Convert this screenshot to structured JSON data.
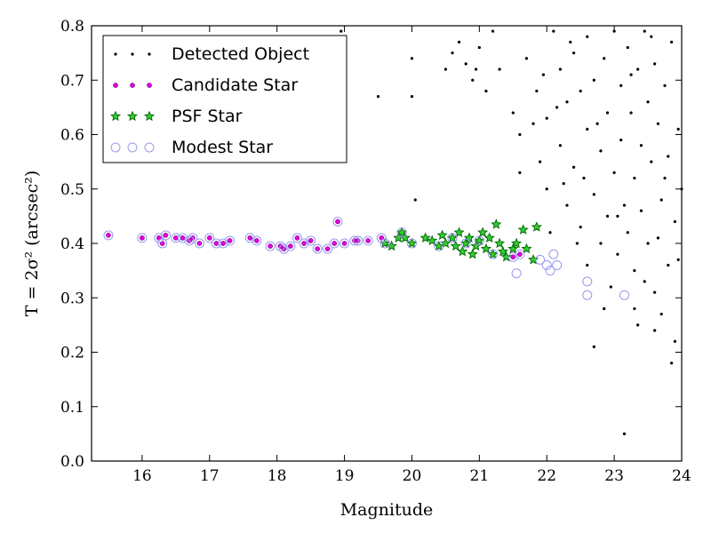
{
  "chart_data": {
    "type": "scatter",
    "xlabel": "Magnitude",
    "ylabel": "T = 2σ² (arcsec²)",
    "xlim": [
      15.25,
      24
    ],
    "ylim": [
      0,
      0.8
    ],
    "xticks": [
      16,
      17,
      18,
      19,
      20,
      21,
      22,
      23,
      24
    ],
    "yticks": [
      0.0,
      0.1,
      0.2,
      0.3,
      0.4,
      0.5,
      0.6,
      0.7,
      0.8
    ],
    "xtick_labels": [
      "16",
      "17",
      "18",
      "19",
      "20",
      "21",
      "22",
      "23",
      "24"
    ],
    "ytick_labels": [
      "0.0",
      "0.1",
      "0.2",
      "0.3",
      "0.4",
      "0.5",
      "0.6",
      "0.7",
      "0.8"
    ],
    "grid": false,
    "legend_position": "top-left",
    "series": [
      {
        "name": "Detected Object",
        "marker": "dot",
        "color": "#000000",
        "points": [
          [
            19.5,
            0.67
          ],
          [
            20.0,
            0.74
          ],
          [
            20.0,
            0.67
          ],
          [
            20.5,
            0.72
          ],
          [
            20.6,
            0.75
          ],
          [
            20.7,
            0.77
          ],
          [
            20.8,
            0.73
          ],
          [
            20.9,
            0.7
          ],
          [
            20.95,
            0.72
          ],
          [
            21.0,
            0.76
          ],
          [
            21.1,
            0.68
          ],
          [
            21.2,
            0.79
          ],
          [
            21.3,
            0.72
          ],
          [
            21.5,
            0.64
          ],
          [
            21.6,
            0.6
          ],
          [
            21.8,
            0.62
          ],
          [
            21.9,
            0.55
          ],
          [
            22.0,
            0.63
          ],
          [
            22.0,
            0.5
          ],
          [
            22.1,
            0.79
          ],
          [
            22.2,
            0.72
          ],
          [
            22.2,
            0.58
          ],
          [
            22.3,
            0.66
          ],
          [
            22.3,
            0.47
          ],
          [
            22.4,
            0.75
          ],
          [
            22.4,
            0.54
          ],
          [
            22.5,
            0.68
          ],
          [
            22.5,
            0.43
          ],
          [
            22.6,
            0.78
          ],
          [
            22.6,
            0.61
          ],
          [
            22.7,
            0.7
          ],
          [
            22.7,
            0.49
          ],
          [
            22.8,
            0.57
          ],
          [
            22.8,
            0.4
          ],
          [
            22.85,
            0.74
          ],
          [
            22.9,
            0.64
          ],
          [
            22.9,
            0.45
          ],
          [
            23.0,
            0.79
          ],
          [
            23.0,
            0.53
          ],
          [
            23.05,
            0.38
          ],
          [
            23.1,
            0.69
          ],
          [
            23.1,
            0.59
          ],
          [
            23.15,
            0.47
          ],
          [
            23.2,
            0.76
          ],
          [
            23.2,
            0.42
          ],
          [
            23.25,
            0.64
          ],
          [
            23.3,
            0.52
          ],
          [
            23.3,
            0.35
          ],
          [
            23.35,
            0.72
          ],
          [
            23.4,
            0.58
          ],
          [
            23.4,
            0.46
          ],
          [
            23.45,
            0.79
          ],
          [
            23.5,
            0.66
          ],
          [
            23.5,
            0.4
          ],
          [
            23.55,
            0.55
          ],
          [
            23.6,
            0.73
          ],
          [
            23.6,
            0.31
          ],
          [
            23.65,
            0.62
          ],
          [
            23.7,
            0.48
          ],
          [
            23.7,
            0.27
          ],
          [
            23.75,
            0.69
          ],
          [
            23.8,
            0.56
          ],
          [
            23.8,
            0.36
          ],
          [
            23.85,
            0.77
          ],
          [
            23.9,
            0.44
          ],
          [
            23.9,
            0.22
          ],
          [
            23.95,
            0.61
          ],
          [
            24.0,
            0.5
          ],
          [
            23.85,
            0.18
          ],
          [
            23.6,
            0.24
          ],
          [
            23.3,
            0.28
          ],
          [
            22.7,
            0.21
          ],
          [
            23.15,
            0.05
          ],
          [
            22.95,
            0.32
          ],
          [
            22.6,
            0.36
          ],
          [
            21.6,
            0.53
          ],
          [
            21.7,
            0.74
          ],
          [
            21.85,
            0.68
          ],
          [
            22.05,
            0.42
          ],
          [
            22.45,
            0.4
          ],
          [
            22.15,
            0.65
          ],
          [
            22.35,
            0.77
          ],
          [
            22.55,
            0.52
          ],
          [
            22.75,
            0.62
          ],
          [
            23.05,
            0.45
          ],
          [
            23.25,
            0.71
          ],
          [
            23.45,
            0.33
          ],
          [
            23.65,
            0.41
          ],
          [
            23.75,
            0.52
          ],
          [
            23.95,
            0.37
          ],
          [
            22.25,
            0.51
          ],
          [
            21.95,
            0.71
          ],
          [
            22.85,
            0.28
          ],
          [
            23.55,
            0.78
          ],
          [
            23.35,
            0.25
          ],
          [
            20.05,
            0.48
          ],
          [
            18.95,
            0.79
          ]
        ]
      },
      {
        "name": "Candidate Star",
        "marker": "circle-small",
        "color": "#e000e0",
        "points": [
          [
            15.5,
            0.415
          ],
          [
            16.0,
            0.41
          ],
          [
            16.25,
            0.41
          ],
          [
            16.3,
            0.4
          ],
          [
            16.35,
            0.415
          ],
          [
            16.5,
            0.41
          ],
          [
            16.6,
            0.41
          ],
          [
            16.7,
            0.405
          ],
          [
            16.75,
            0.41
          ],
          [
            16.85,
            0.4
          ],
          [
            17.0,
            0.41
          ],
          [
            17.1,
            0.4
          ],
          [
            17.2,
            0.4
          ],
          [
            17.3,
            0.405
          ],
          [
            17.6,
            0.41
          ],
          [
            17.7,
            0.405
          ],
          [
            17.9,
            0.395
          ],
          [
            18.05,
            0.395
          ],
          [
            18.1,
            0.39
          ],
          [
            18.2,
            0.395
          ],
          [
            18.3,
            0.41
          ],
          [
            18.4,
            0.4
          ],
          [
            18.5,
            0.405
          ],
          [
            18.6,
            0.39
          ],
          [
            18.75,
            0.39
          ],
          [
            18.85,
            0.4
          ],
          [
            18.9,
            0.44
          ],
          [
            19.0,
            0.4
          ],
          [
            19.15,
            0.405
          ],
          [
            19.2,
            0.405
          ],
          [
            19.35,
            0.405
          ],
          [
            19.55,
            0.41
          ],
          [
            21.5,
            0.375
          ],
          [
            21.6,
            0.38
          ]
        ]
      },
      {
        "name": "PSF Star",
        "marker": "star",
        "color": "#00aa00",
        "points": [
          [
            19.6,
            0.4
          ],
          [
            19.7,
            0.395
          ],
          [
            19.8,
            0.41
          ],
          [
            19.85,
            0.42
          ],
          [
            19.9,
            0.41
          ],
          [
            20.0,
            0.4
          ],
          [
            20.2,
            0.41
          ],
          [
            20.3,
            0.405
          ],
          [
            20.4,
            0.395
          ],
          [
            20.45,
            0.415
          ],
          [
            20.5,
            0.4
          ],
          [
            20.6,
            0.41
          ],
          [
            20.65,
            0.395
          ],
          [
            20.7,
            0.42
          ],
          [
            20.75,
            0.385
          ],
          [
            20.8,
            0.4
          ],
          [
            20.85,
            0.41
          ],
          [
            20.9,
            0.38
          ],
          [
            20.95,
            0.395
          ],
          [
            21.0,
            0.405
          ],
          [
            21.05,
            0.42
          ],
          [
            21.1,
            0.39
          ],
          [
            21.15,
            0.41
          ],
          [
            21.2,
            0.38
          ],
          [
            21.25,
            0.435
          ],
          [
            21.3,
            0.4
          ],
          [
            21.35,
            0.385
          ],
          [
            21.4,
            0.375
          ],
          [
            21.5,
            0.39
          ],
          [
            21.55,
            0.4
          ],
          [
            21.65,
            0.425
          ],
          [
            21.7,
            0.39
          ],
          [
            21.8,
            0.37
          ],
          [
            21.85,
            0.43
          ]
        ]
      },
      {
        "name": "Modest Star",
        "marker": "ring",
        "color": "#9999ee",
        "points": [
          [
            15.5,
            0.415
          ],
          [
            16.0,
            0.41
          ],
          [
            16.25,
            0.41
          ],
          [
            16.3,
            0.4
          ],
          [
            16.35,
            0.415
          ],
          [
            16.5,
            0.41
          ],
          [
            16.6,
            0.41
          ],
          [
            16.7,
            0.405
          ],
          [
            16.75,
            0.41
          ],
          [
            16.85,
            0.4
          ],
          [
            17.0,
            0.41
          ],
          [
            17.1,
            0.4
          ],
          [
            17.2,
            0.4
          ],
          [
            17.3,
            0.405
          ],
          [
            17.6,
            0.41
          ],
          [
            17.7,
            0.405
          ],
          [
            17.9,
            0.395
          ],
          [
            18.05,
            0.395
          ],
          [
            18.1,
            0.39
          ],
          [
            18.2,
            0.395
          ],
          [
            18.3,
            0.41
          ],
          [
            18.4,
            0.4
          ],
          [
            18.5,
            0.405
          ],
          [
            18.6,
            0.39
          ],
          [
            18.75,
            0.39
          ],
          [
            18.85,
            0.4
          ],
          [
            18.9,
            0.44
          ],
          [
            19.0,
            0.4
          ],
          [
            19.15,
            0.405
          ],
          [
            19.2,
            0.405
          ],
          [
            19.35,
            0.405
          ],
          [
            19.55,
            0.41
          ],
          [
            19.6,
            0.4
          ],
          [
            19.85,
            0.42
          ],
          [
            20.0,
            0.4
          ],
          [
            20.4,
            0.395
          ],
          [
            20.6,
            0.41
          ],
          [
            20.8,
            0.4
          ],
          [
            21.0,
            0.405
          ],
          [
            21.2,
            0.38
          ],
          [
            21.5,
            0.375
          ],
          [
            21.55,
            0.345
          ],
          [
            21.6,
            0.38
          ],
          [
            21.9,
            0.37
          ],
          [
            22.0,
            0.36
          ],
          [
            22.05,
            0.35
          ],
          [
            22.1,
            0.38
          ],
          [
            22.15,
            0.36
          ],
          [
            22.6,
            0.33
          ],
          [
            22.6,
            0.305
          ],
          [
            23.15,
            0.305
          ]
        ]
      }
    ]
  }
}
